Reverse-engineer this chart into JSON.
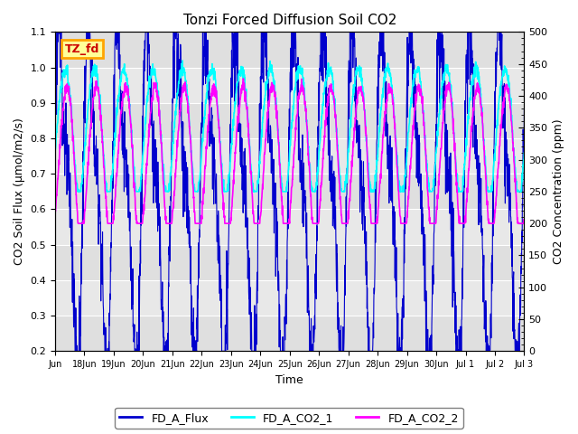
{
  "title": "Tonzi Forced Diffusion Soil CO2",
  "xlabel": "Time",
  "ylabel_left": "CO2 Soil Flux (μmol/m2/s)",
  "ylabel_right": "CO2 Concentration (ppm)",
  "ylim_left": [
    0.2,
    1.1
  ],
  "ylim_right": [
    0,
    500
  ],
  "yticks_left": [
    0.2,
    0.3,
    0.4,
    0.5,
    0.6,
    0.7,
    0.8,
    0.9,
    1.0,
    1.1
  ],
  "yticks_right": [
    0,
    50,
    100,
    150,
    200,
    250,
    300,
    350,
    400,
    450,
    500
  ],
  "fig_bg_color": "#ffffff",
  "plot_bg_color": "#e8e8e8",
  "grid_bg_light": "#f0f0f0",
  "line_flux_color": "#0000CD",
  "line_co2_1_color": "#00FFFF",
  "line_co2_2_color": "#FF00FF",
  "label_box_text": "TZ_fd",
  "label_box_facecolor": "#FFFF99",
  "label_box_edgecolor": "#FFA500",
  "label_box_textcolor": "#CC0000",
  "legend_labels": [
    "FD_A_Flux",
    "FD_A_CO2_1",
    "FD_A_CO2_2"
  ],
  "n_points": 2000,
  "n_days": 16
}
